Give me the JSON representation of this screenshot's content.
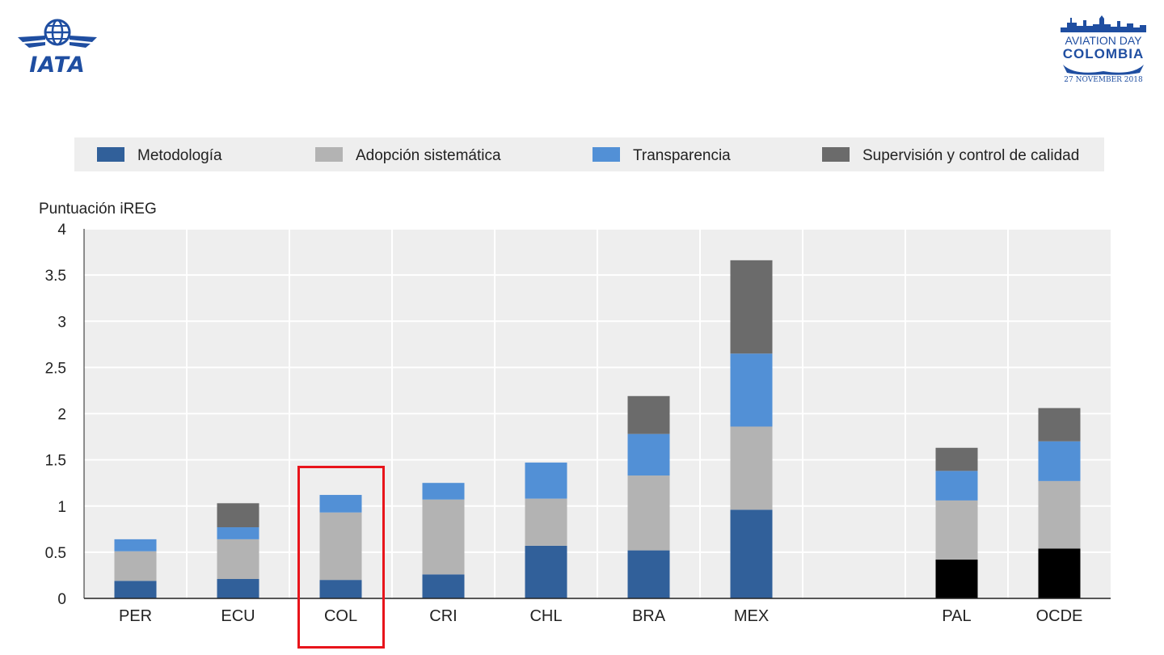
{
  "logos": {
    "iata": "IATA",
    "aviation_day": {
      "line1": "AVIATION DAY",
      "line2": "COLOMBIA",
      "line3": "27 NOVEMBER 2018"
    }
  },
  "colors": {
    "metodologia": "#31609a",
    "adopcion": "#b3b3b3",
    "transparencia": "#5290d6",
    "supervision": "#6b6b6b",
    "black": "#000000",
    "highlight": "#e8141b",
    "grid_bg": "#eeeeee"
  },
  "chart_data": {
    "type": "bar",
    "stacked": true,
    "title": "",
    "xlabel": "",
    "ylabel": "Puntuación iREG",
    "ylim": [
      0,
      4
    ],
    "yticks": [
      "0",
      "0.5",
      "1",
      "1.5",
      "2",
      "2.5",
      "3",
      "3.5",
      "4"
    ],
    "legend_position": "top",
    "categories": [
      "PER",
      "ECU",
      "COL",
      "CRI",
      "CHL",
      "BRA",
      "MEX",
      "",
      "PAL",
      "OCDE"
    ],
    "series": [
      {
        "name": "Metodología",
        "values": [
          0.19,
          0.21,
          0.2,
          0.26,
          0.57,
          0.52,
          0.96,
          null,
          0.42,
          0.54
        ]
      },
      {
        "name": "Adopción sistemática",
        "values": [
          0.32,
          0.43,
          0.73,
          0.81,
          0.51,
          0.81,
          0.9,
          null,
          0.64,
          0.73
        ]
      },
      {
        "name": "Transparencia",
        "values": [
          0.13,
          0.13,
          0.19,
          0.18,
          0.39,
          0.45,
          0.79,
          null,
          0.32,
          0.43
        ]
      },
      {
        "name": "Supervisión y  control de calidad",
        "values": [
          0,
          0.26,
          0,
          0,
          0,
          0.41,
          1.01,
          null,
          0.25,
          0.36
        ]
      }
    ],
    "black_base_categories": [
      "PAL",
      "OCDE"
    ],
    "highlighted_category": "COL"
  }
}
